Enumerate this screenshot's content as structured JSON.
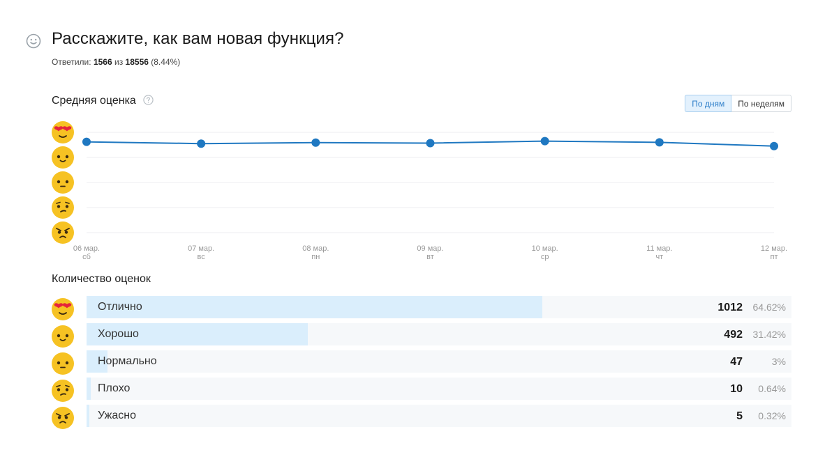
{
  "header": {
    "title": "Расскажите, как вам новая функция?",
    "answered_label": "Ответили:",
    "answered_count": "1566",
    "of_label": "из",
    "total_count": "18556",
    "answered_pct": "(8.44%)"
  },
  "avg_section": {
    "title": "Средняя оценка",
    "help_icon": "question-circle-icon",
    "toggle": {
      "by_days": "По дням",
      "by_weeks": "По неделям",
      "active": "by_days"
    }
  },
  "count_section": {
    "title": "Количество оценок"
  },
  "colors": {
    "line": "#1f78c1",
    "bar_fill": "#daeefc",
    "bar_track": "#f6f8fa",
    "emoji": "#f6c223"
  },
  "rating_scale": [
    {
      "level": 5,
      "icon": "heart-eyes-emoji-icon"
    },
    {
      "level": 4,
      "icon": "smile-emoji-icon"
    },
    {
      "level": 3,
      "icon": "neutral-emoji-icon"
    },
    {
      "level": 2,
      "icon": "unamused-emoji-icon"
    },
    {
      "level": 1,
      "icon": "angry-emoji-icon"
    }
  ],
  "chart_data": [
    {
      "type": "line",
      "title": "Средняя оценка",
      "categories": [
        {
          "date": "06 мар.",
          "weekday": "сб"
        },
        {
          "date": "07 мар.",
          "weekday": "вс"
        },
        {
          "date": "08 мар.",
          "weekday": "пн"
        },
        {
          "date": "09 мар.",
          "weekday": "вт"
        },
        {
          "date": "10 мар.",
          "weekday": "ср"
        },
        {
          "date": "11 мар.",
          "weekday": "чт"
        },
        {
          "date": "12 мар.",
          "weekday": "пт"
        }
      ],
      "values": [
        4.62,
        4.55,
        4.59,
        4.57,
        4.65,
        4.6,
        4.45
      ],
      "ylim": [
        1,
        5
      ],
      "grid": true
    },
    {
      "type": "bar",
      "title": "Количество оценок",
      "orientation": "horizontal",
      "series": [
        {
          "label": "Отлично",
          "count": 1012,
          "count_text": "1012",
          "percent": 64.62,
          "percent_text": "64.62%",
          "icon": "heart-eyes-emoji-icon"
        },
        {
          "label": "Хорошо",
          "count": 492,
          "count_text": "492",
          "percent": 31.42,
          "percent_text": "31.42%",
          "icon": "smile-emoji-icon"
        },
        {
          "label": "Нормально",
          "count": 47,
          "count_text": "47",
          "percent": 3,
          "percent_text": "3%",
          "icon": "neutral-emoji-icon"
        },
        {
          "label": "Плохо",
          "count": 10,
          "count_text": "10",
          "percent": 0.64,
          "percent_text": "0.64%",
          "icon": "unamused-emoji-icon"
        },
        {
          "label": "Ужасно",
          "count": 5,
          "count_text": "5",
          "percent": 0.32,
          "percent_text": "0.32%",
          "icon": "angry-emoji-icon"
        }
      ]
    }
  ]
}
